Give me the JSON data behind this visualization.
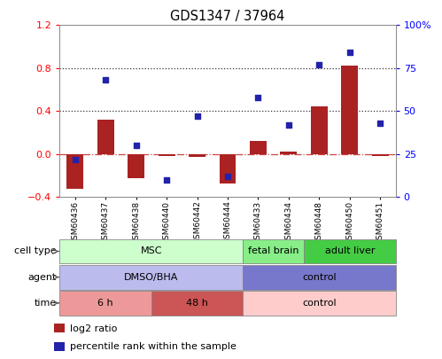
{
  "title": "GDS1347 / 37964",
  "samples": [
    "GSM60436",
    "GSM60437",
    "GSM60438",
    "GSM60440",
    "GSM60442",
    "GSM60444",
    "GSM60433",
    "GSM60434",
    "GSM60448",
    "GSM60450",
    "GSM60451"
  ],
  "log2_ratio": [
    -0.32,
    0.32,
    -0.22,
    -0.02,
    -0.03,
    -0.27,
    0.12,
    0.02,
    0.44,
    0.82,
    -0.02
  ],
  "pct_rank": [
    22,
    68,
    30,
    10,
    47,
    12,
    58,
    42,
    77,
    84,
    43
  ],
  "bar_color": "#aa2222",
  "dot_color": "#2222aa",
  "ylim_left": [
    -0.4,
    1.2
  ],
  "ylim_right": [
    0,
    100
  ],
  "yticks_left": [
    -0.4,
    0.0,
    0.4,
    0.8,
    1.2
  ],
  "yticks_right": [
    0,
    25,
    50,
    75,
    100
  ],
  "hlines": [
    0.0,
    0.4,
    0.8
  ],
  "hline_styles": [
    "dashdot",
    "dotted",
    "dotted"
  ],
  "hline_colors": [
    "#cc4444",
    "#333333",
    "#333333"
  ],
  "cell_type_groups": [
    {
      "label": "MSC",
      "start": 0,
      "end": 6,
      "color": "#ccffcc"
    },
    {
      "label": "fetal brain",
      "start": 6,
      "end": 8,
      "color": "#88ee88"
    },
    {
      "label": "adult liver",
      "start": 8,
      "end": 11,
      "color": "#44cc44"
    }
  ],
  "agent_groups": [
    {
      "label": "DMSO/BHA",
      "start": 0,
      "end": 6,
      "color": "#bbbbee"
    },
    {
      "label": "control",
      "start": 6,
      "end": 11,
      "color": "#7777cc"
    }
  ],
  "time_groups": [
    {
      "label": "6 h",
      "start": 0,
      "end": 3,
      "color": "#ee9999"
    },
    {
      "label": "48 h",
      "start": 3,
      "end": 6,
      "color": "#cc5555"
    },
    {
      "label": "control",
      "start": 6,
      "end": 11,
      "color": "#ffcccc"
    }
  ],
  "row_labels": [
    "cell type",
    "agent",
    "time"
  ],
  "legend_labels": [
    "log2 ratio",
    "percentile rank within the sample"
  ],
  "legend_colors": [
    "#aa2222",
    "#2222aa"
  ]
}
